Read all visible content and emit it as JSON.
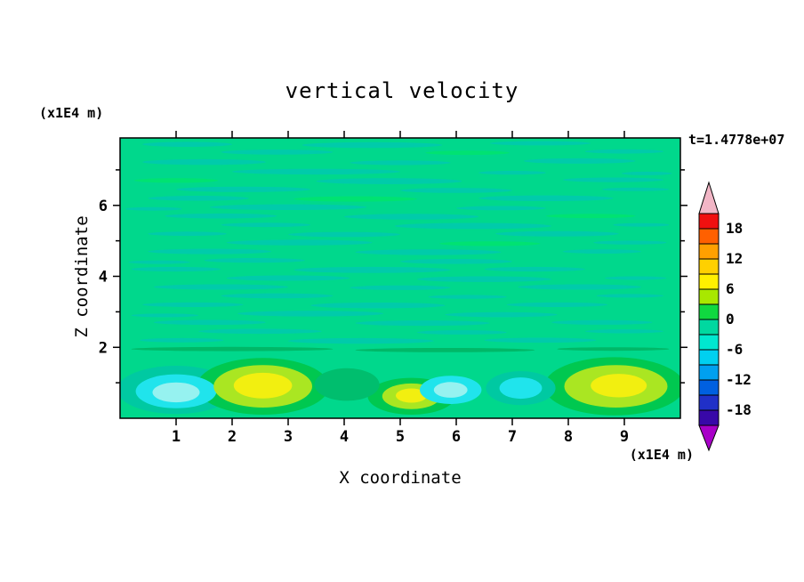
{
  "page": {
    "background": "#ffffff"
  },
  "chart_data": {
    "type": "heatmap",
    "title": "vertical velocity",
    "xlabel": "X coordinate",
    "ylabel": "Z coordinate",
    "x_unit_label": "(x1E4 m)",
    "y_unit_label": "(x1E4 m)",
    "timestamp": "t=1.4778e+07",
    "x_range": [
      0,
      10
    ],
    "y_range": [
      0,
      7.9
    ],
    "x_ticks": [
      1,
      2,
      3,
      4,
      5,
      6,
      7,
      8,
      9
    ],
    "y_minor_ticks": [
      1,
      2,
      3,
      4,
      5,
      6,
      7
    ],
    "y_ticks": [
      2,
      4,
      6
    ],
    "grid": false,
    "colorbar_position": "right",
    "field_description": "vertical velocity contour field: near-zero (green) over most of domain with thin horizontal wave streaks; below z~2e4 m alternating updraft cells (yellow, ~+6 to +9) near x=2.5, 5.2, 8.9 and downdraft cells (cyan, ~-6) near x=1.0, 5.9, 7.2",
    "background_level_color": "#00D88C",
    "streak_palette": [
      "#00CBAA",
      "#00E272",
      "#00B868"
    ],
    "streaks": [
      [
        1.2,
        7.72,
        1.6,
        0.14,
        0
      ],
      [
        4.5,
        7.7,
        2.5,
        0.16,
        0
      ],
      [
        7.5,
        7.75,
        1.8,
        0.12,
        0
      ],
      [
        2.8,
        7.5,
        2.0,
        0.14,
        0
      ],
      [
        6.2,
        7.48,
        1.5,
        0.12,
        1
      ],
      [
        9.0,
        7.52,
        1.4,
        0.12,
        0
      ],
      [
        1.5,
        7.22,
        2.2,
        0.16,
        0
      ],
      [
        5.0,
        7.2,
        1.8,
        0.13,
        0
      ],
      [
        8.2,
        7.25,
        2.0,
        0.15,
        0
      ],
      [
        3.5,
        6.95,
        3.0,
        0.16,
        0
      ],
      [
        7.0,
        6.92,
        1.2,
        0.11,
        0
      ],
      [
        9.4,
        6.9,
        0.9,
        0.1,
        0
      ],
      [
        1.0,
        6.7,
        1.5,
        0.13,
        1
      ],
      [
        4.8,
        6.68,
        2.6,
        0.17,
        0
      ],
      [
        8.8,
        6.72,
        1.8,
        0.13,
        0
      ],
      [
        2.2,
        6.45,
        2.4,
        0.15,
        0
      ],
      [
        6.0,
        6.42,
        2.0,
        0.14,
        0
      ],
      [
        9.2,
        6.45,
        1.2,
        0.1,
        0
      ],
      [
        1.4,
        6.2,
        1.8,
        0.14,
        0
      ],
      [
        4.2,
        6.18,
        2.2,
        0.15,
        1
      ],
      [
        7.6,
        6.2,
        2.4,
        0.16,
        0
      ],
      [
        3.0,
        5.95,
        2.8,
        0.16,
        0
      ],
      [
        6.8,
        5.92,
        1.6,
        0.12,
        0
      ],
      [
        0.6,
        5.9,
        1.0,
        0.1,
        0
      ],
      [
        1.8,
        5.7,
        2.0,
        0.14,
        0
      ],
      [
        5.2,
        5.68,
        2.4,
        0.16,
        0
      ],
      [
        8.4,
        5.7,
        1.6,
        0.12,
        1
      ],
      [
        2.6,
        5.45,
        1.6,
        0.12,
        0
      ],
      [
        6.3,
        5.42,
        2.8,
        0.17,
        0
      ],
      [
        9.3,
        5.45,
        1.0,
        0.1,
        0
      ],
      [
        1.2,
        5.2,
        1.4,
        0.12,
        0
      ],
      [
        4.0,
        5.18,
        2.0,
        0.14,
        0
      ],
      [
        7.8,
        5.2,
        2.2,
        0.15,
        0
      ],
      [
        3.2,
        4.95,
        2.6,
        0.16,
        0
      ],
      [
        6.6,
        4.92,
        1.8,
        0.13,
        1
      ],
      [
        9.1,
        4.95,
        1.3,
        0.11,
        0
      ],
      [
        1.6,
        4.7,
        2.2,
        0.15,
        0
      ],
      [
        5.5,
        4.68,
        2.6,
        0.16,
        0
      ],
      [
        8.6,
        4.7,
        1.4,
        0.12,
        0
      ],
      [
        2.4,
        4.45,
        1.8,
        0.13,
        0
      ],
      [
        6.0,
        4.42,
        2.0,
        0.14,
        0
      ],
      [
        0.7,
        4.4,
        1.1,
        0.1,
        0
      ],
      [
        1.0,
        4.2,
        1.6,
        0.13,
        0
      ],
      [
        4.5,
        4.18,
        2.8,
        0.17,
        0
      ],
      [
        7.4,
        4.2,
        1.8,
        0.13,
        0
      ],
      [
        3.0,
        3.95,
        2.2,
        0.15,
        0
      ],
      [
        6.5,
        3.92,
        2.4,
        0.16,
        0
      ],
      [
        9.2,
        3.95,
        1.1,
        0.1,
        0
      ],
      [
        1.8,
        3.7,
        2.4,
        0.15,
        0
      ],
      [
        5.0,
        3.68,
        1.8,
        0.13,
        0
      ],
      [
        8.2,
        3.7,
        2.2,
        0.15,
        0
      ],
      [
        2.8,
        3.45,
        2.0,
        0.14,
        0
      ],
      [
        6.2,
        3.42,
        1.4,
        0.11,
        0
      ],
      [
        9.1,
        3.45,
        1.2,
        0.1,
        0
      ],
      [
        1.3,
        3.2,
        1.8,
        0.13,
        0
      ],
      [
        4.6,
        3.18,
        2.4,
        0.16,
        0
      ],
      [
        7.8,
        3.2,
        1.8,
        0.13,
        0
      ],
      [
        3.4,
        2.95,
        2.6,
        0.16,
        0
      ],
      [
        6.8,
        2.92,
        2.0,
        0.14,
        0
      ],
      [
        0.8,
        2.9,
        1.2,
        0.1,
        0
      ],
      [
        1.6,
        2.7,
        2.0,
        0.14,
        0
      ],
      [
        5.4,
        2.68,
        2.4,
        0.15,
        0
      ],
      [
        8.6,
        2.7,
        1.8,
        0.13,
        0
      ],
      [
        2.5,
        2.45,
        2.2,
        0.14,
        0
      ],
      [
        6.1,
        2.42,
        1.6,
        0.12,
        0
      ],
      [
        9.0,
        2.45,
        1.4,
        0.11,
        0
      ],
      [
        1.1,
        2.2,
        1.5,
        0.12,
        0
      ],
      [
        4.3,
        2.18,
        2.6,
        0.16,
        0
      ],
      [
        7.5,
        2.2,
        2.0,
        0.14,
        0
      ],
      [
        2.0,
        1.95,
        3.6,
        0.12,
        2
      ],
      [
        5.8,
        1.92,
        3.2,
        0.12,
        2
      ],
      [
        8.8,
        1.95,
        2.0,
        0.1,
        2
      ]
    ],
    "blobs": [
      [
        1.0,
        0.8,
        2.1,
        1.36,
        "#00C9A2"
      ],
      [
        2.55,
        0.9,
        2.36,
        1.6,
        "#00C850"
      ],
      [
        8.82,
        0.9,
        2.5,
        1.64,
        "#00C850"
      ],
      [
        5.2,
        0.62,
        1.56,
        1.04,
        "#00C850"
      ],
      [
        4.05,
        0.95,
        1.16,
        0.92,
        "#00BE6E"
      ],
      [
        7.15,
        0.85,
        1.24,
        0.96,
        "#00C9A2"
      ],
      [
        1.0,
        0.76,
        1.44,
        0.96,
        "#20E4EC"
      ],
      [
        1.0,
        0.73,
        0.84,
        0.56,
        "#96F2F0"
      ],
      [
        2.55,
        0.9,
        1.76,
        1.2,
        "#AAE622"
      ],
      [
        2.55,
        0.92,
        1.04,
        0.72,
        "#F2EF10"
      ],
      [
        5.2,
        0.62,
        1.04,
        0.72,
        "#AAE622"
      ],
      [
        5.2,
        0.64,
        0.56,
        0.4,
        "#F2EF10"
      ],
      [
        5.9,
        0.8,
        1.1,
        0.8,
        "#20E4EC"
      ],
      [
        5.9,
        0.8,
        0.6,
        0.44,
        "#96F2F0"
      ],
      [
        7.15,
        0.85,
        0.76,
        0.6,
        "#20E4EC"
      ],
      [
        8.85,
        0.9,
        1.84,
        1.2,
        "#AAE622"
      ],
      [
        8.9,
        0.92,
        1.0,
        0.66,
        "#F2EF10"
      ]
    ],
    "colorbar": {
      "labels": [
        18,
        12,
        6,
        0,
        -6,
        -12,
        -18
      ],
      "cell_bounds": [
        21,
        18,
        15,
        12,
        9,
        6,
        3,
        0,
        -3,
        -6,
        -9,
        -12,
        -15,
        -18,
        -21
      ],
      "cell_colors": [
        "#F01010",
        "#FF6000",
        "#FFA000",
        "#FFD000",
        "#FFF000",
        "#A8E800",
        "#10D840",
        "#00D8A0",
        "#00E8D0",
        "#00D0F0",
        "#00A0F0",
        "#0060E0",
        "#2030C8",
        "#3808A8"
      ],
      "over_color": "#F2B6C6",
      "under_color": "#A800C8"
    }
  }
}
